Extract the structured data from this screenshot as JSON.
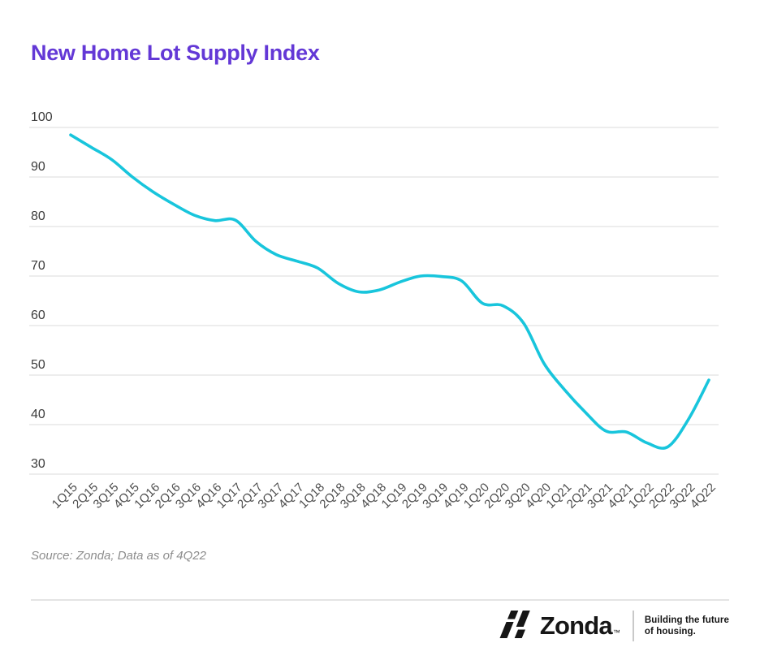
{
  "title": "New Home Lot Supply Index",
  "source_note": "Source: Zonda; Data as of 4Q22",
  "footer": {
    "brand": "Zonda",
    "trademark": "™",
    "tagline_line1": "Building the future",
    "tagline_line2": "of housing."
  },
  "colors": {
    "title": "#6338d6",
    "line": "#18c5dc",
    "grid": "#ededed",
    "ytick_text": "#3b3b3b",
    "xtick_text": "#4d4d4d",
    "source_text": "#8d8d8d",
    "footer_text": "#161616"
  },
  "chart_data": {
    "type": "line",
    "title": "New Home Lot Supply Index",
    "categories": [
      "1Q15",
      "2Q15",
      "3Q15",
      "4Q15",
      "1Q16",
      "2Q16",
      "3Q16",
      "4Q16",
      "1Q17",
      "2Q17",
      "3Q17",
      "4Q17",
      "1Q18",
      "2Q18",
      "3Q18",
      "4Q18",
      "1Q19",
      "2Q19",
      "3Q19",
      "4Q19",
      "1Q20",
      "2Q20",
      "3Q20",
      "4Q20",
      "1Q21",
      "2Q21",
      "3Q21",
      "4Q21",
      "1Q22",
      "2Q22",
      "3Q22",
      "4Q22"
    ],
    "values": [
      98.5,
      96,
      93.5,
      90,
      87,
      84.5,
      82.3,
      81.2,
      81.3,
      77,
      74.3,
      73,
      71.6,
      68.5,
      66.8,
      67.2,
      68.8,
      70,
      69.9,
      69,
      64.5,
      64,
      60.5,
      52.3,
      47,
      42.5,
      38.7,
      38.5,
      36.3,
      35.5,
      41,
      49
    ],
    "xlabel": "",
    "ylabel": "",
    "ylim": [
      30,
      100
    ],
    "yticks": [
      30,
      40,
      50,
      60,
      70,
      80,
      90,
      100
    ],
    "grid": "horizontal-only",
    "legend": "none",
    "line_color": "#18c5dc",
    "line_smoothing": "spline"
  }
}
